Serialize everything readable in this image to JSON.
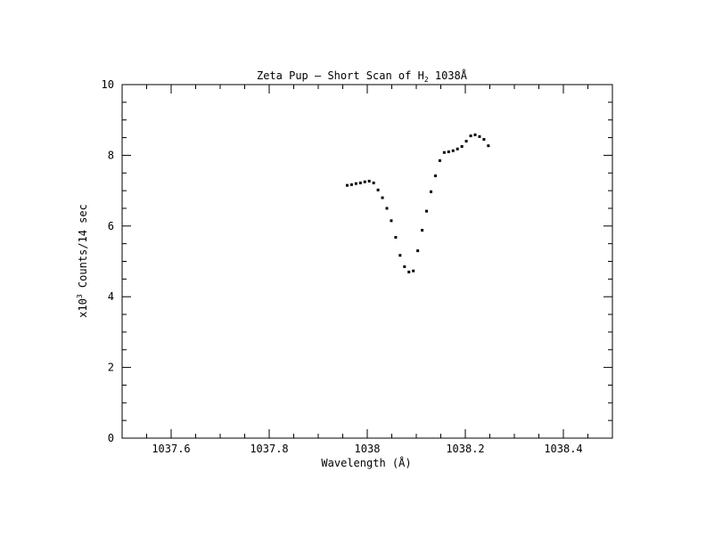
{
  "chart_data": {
    "type": "scatter",
    "title_parts": {
      "pre": "Zeta Pup — Short Scan of H",
      "sub": "2",
      "post": " 1038Å"
    },
    "xlabel": "Wavelength (Å)",
    "ylabel_parts": {
      "pre": "x10",
      "sup": "3",
      "post": " Counts/14 sec"
    },
    "xlim": [
      1037.5,
      1038.5
    ],
    "ylim": [
      0,
      10
    ],
    "x_major_ticks": [
      1037.6,
      1037.8,
      1038.0,
      1038.2,
      1038.4
    ],
    "x_tick_labels": [
      "1037.6",
      "1037.8",
      "1038",
      "1038.2",
      "1038.4"
    ],
    "y_major_ticks": [
      0,
      2,
      4,
      6,
      8,
      10
    ],
    "y_tick_labels": [
      "0",
      "2",
      "4",
      "6",
      "8",
      "10"
    ],
    "grid": false,
    "marker_color": "#000000",
    "points": [
      {
        "x": 1037.959,
        "y": 7.15
      },
      {
        "x": 1037.968,
        "y": 7.17
      },
      {
        "x": 1037.977,
        "y": 7.2
      },
      {
        "x": 1037.986,
        "y": 7.22
      },
      {
        "x": 1037.995,
        "y": 7.25
      },
      {
        "x": 1038.004,
        "y": 7.27
      },
      {
        "x": 1038.013,
        "y": 7.22
      },
      {
        "x": 1038.022,
        "y": 7.02
      },
      {
        "x": 1038.031,
        "y": 6.8
      },
      {
        "x": 1038.04,
        "y": 6.5
      },
      {
        "x": 1038.049,
        "y": 6.15
      },
      {
        "x": 1038.058,
        "y": 5.68
      },
      {
        "x": 1038.067,
        "y": 5.17
      },
      {
        "x": 1038.076,
        "y": 4.85
      },
      {
        "x": 1038.085,
        "y": 4.7
      },
      {
        "x": 1038.094,
        "y": 4.73
      },
      {
        "x": 1038.103,
        "y": 5.3
      },
      {
        "x": 1038.112,
        "y": 5.88
      },
      {
        "x": 1038.121,
        "y": 6.42
      },
      {
        "x": 1038.13,
        "y": 6.97
      },
      {
        "x": 1038.139,
        "y": 7.42
      },
      {
        "x": 1038.148,
        "y": 7.85
      },
      {
        "x": 1038.157,
        "y": 8.08
      },
      {
        "x": 1038.166,
        "y": 8.1
      },
      {
        "x": 1038.175,
        "y": 8.13
      },
      {
        "x": 1038.184,
        "y": 8.18
      },
      {
        "x": 1038.193,
        "y": 8.25
      },
      {
        "x": 1038.202,
        "y": 8.4
      },
      {
        "x": 1038.211,
        "y": 8.55
      },
      {
        "x": 1038.22,
        "y": 8.58
      },
      {
        "x": 1038.229,
        "y": 8.53
      },
      {
        "x": 1038.238,
        "y": 8.45
      },
      {
        "x": 1038.247,
        "y": 8.27
      }
    ]
  }
}
